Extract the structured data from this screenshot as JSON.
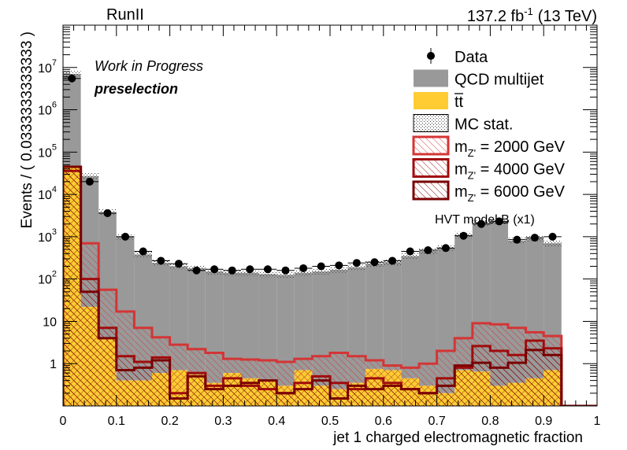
{
  "chart_data": {
    "type": "bar",
    "title_left": "RunII",
    "title_right": {
      "lumi": "137.2 fb",
      "lumi_exp": "-1",
      "energy": "(13 TeV)"
    },
    "annotations": {
      "status": "Work in Progress",
      "selection": "preselection",
      "model": "HVT model B (x1)"
    },
    "xlabel": "jet 1 charged electromagnetic fraction",
    "ylabel": "Events / ( 0.0333333333333 )",
    "xlim": [
      0,
      1
    ],
    "ylim": [
      0.1,
      100000000.0
    ],
    "log_y": true,
    "bin_width": 0.0333333,
    "x_ticks": [
      "0",
      "0.1",
      "0.2",
      "0.3",
      "0.4",
      "0.5",
      "0.6",
      "0.7",
      "0.8",
      "0.9",
      "1"
    ],
    "y_ticks": [
      {
        "value": 1,
        "base": "1",
        "exp": ""
      },
      {
        "value": 10,
        "base": "10",
        "exp": ""
      },
      {
        "value": 100,
        "base": "10",
        "exp": "2"
      },
      {
        "value": 1000,
        "base": "10",
        "exp": "3"
      },
      {
        "value": 10000,
        "base": "10",
        "exp": "4"
      },
      {
        "value": 100000,
        "base": "10",
        "exp": "5"
      },
      {
        "value": 1000000,
        "base": "10",
        "exp": "6"
      },
      {
        "value": 10000000,
        "base": "10",
        "exp": "7"
      }
    ],
    "legend": {
      "position": "top-right",
      "entries": [
        {
          "label": "Data",
          "style": "marker"
        },
        {
          "label": "QCD multijet",
          "style": "fill"
        },
        {
          "label": "tt",
          "style": "fill-ttbar"
        },
        {
          "label": "MC stat.",
          "style": "dots"
        },
        {
          "label": "m",
          "sub": "Z'",
          "suffix": " = 2000 GeV",
          "style": "signal"
        },
        {
          "label": "m",
          "sub": "Z'",
          "suffix": " = 4000 GeV",
          "style": "signal"
        },
        {
          "label": "m",
          "sub": "Z'",
          "suffix": " = 6000 GeV",
          "style": "signal"
        }
      ]
    },
    "colors": {
      "qcd": "#999999",
      "ttbar": "#ffcc33",
      "mcstat": "#555555",
      "signal_2000": "#d43535",
      "signal_4000": "#a00c0c",
      "signal_6000": "#7a0000"
    },
    "series": [
      {
        "name": "Data",
        "kind": "points",
        "values": [
          5500000,
          20000,
          3600,
          1000,
          450,
          270,
          230,
          160,
          170,
          160,
          170,
          170,
          160,
          180,
          200,
          210,
          240,
          250,
          270,
          450,
          480,
          540,
          1050,
          2000,
          2300,
          850,
          950,
          1000,
          0,
          0
        ]
      },
      {
        "name": "QCD multijet",
        "kind": "stack-fill",
        "values": [
          7000000,
          27000,
          3800,
          1000,
          380,
          240,
          200,
          180,
          150,
          140,
          140,
          130,
          125,
          140,
          150,
          165,
          190,
          230,
          250,
          350,
          460,
          550,
          1100,
          2100,
          2300,
          800,
          920,
          700,
          0,
          0
        ]
      },
      {
        "name": "tt",
        "kind": "stack-fill",
        "values": [
          45000,
          22,
          3.8,
          0.4,
          0.4,
          0.6,
          0.7,
          0.55,
          0.35,
          0.6,
          0.45,
          0.4,
          0.3,
          0.7,
          0.3,
          0.25,
          0.35,
          0.75,
          0.7,
          0.45,
          0.3,
          0.2,
          0.7,
          0.65,
          0.3,
          0.35,
          0.45,
          0.7,
          0,
          0
        ]
      },
      {
        "name": "m = 2000 GeV",
        "kind": "signal",
        "values": [
          45000,
          700,
          56,
          17,
          7,
          4.2,
          2.8,
          2.2,
          1.8,
          1.3,
          1.25,
          1.2,
          1.1,
          1.3,
          1.5,
          1.8,
          1.5,
          1.2,
          0.9,
          0.8,
          1,
          2,
          4,
          9,
          8.5,
          7,
          5.5,
          4.5,
          0,
          0
        ]
      },
      {
        "name": "m = 4000 GeV",
        "kind": "signal",
        "values": [
          36000,
          100,
          7,
          1.5,
          1.1,
          1.4,
          0.2,
          0.6,
          0.3,
          0.45,
          0.3,
          0.25,
          0.2,
          0.35,
          0.5,
          0.35,
          0.25,
          0.45,
          0.35,
          0.25,
          0.2,
          0.45,
          0.8,
          2.6,
          2,
          1.6,
          3.5,
          2.3,
          0,
          0
        ]
      },
      {
        "name": "m = 6000 GeV",
        "kind": "signal",
        "values": [
          45000,
          50,
          4,
          0.7,
          0.8,
          1.2,
          0.15,
          0.5,
          0.25,
          0.3,
          0.35,
          0.4,
          0.2,
          0.25,
          0.4,
          0.15,
          0.3,
          0.25,
          0.3,
          0.25,
          0.2,
          0.3,
          0.9,
          1.05,
          0.8,
          1.05,
          2.1,
          1.6,
          0,
          0
        ]
      }
    ]
  }
}
